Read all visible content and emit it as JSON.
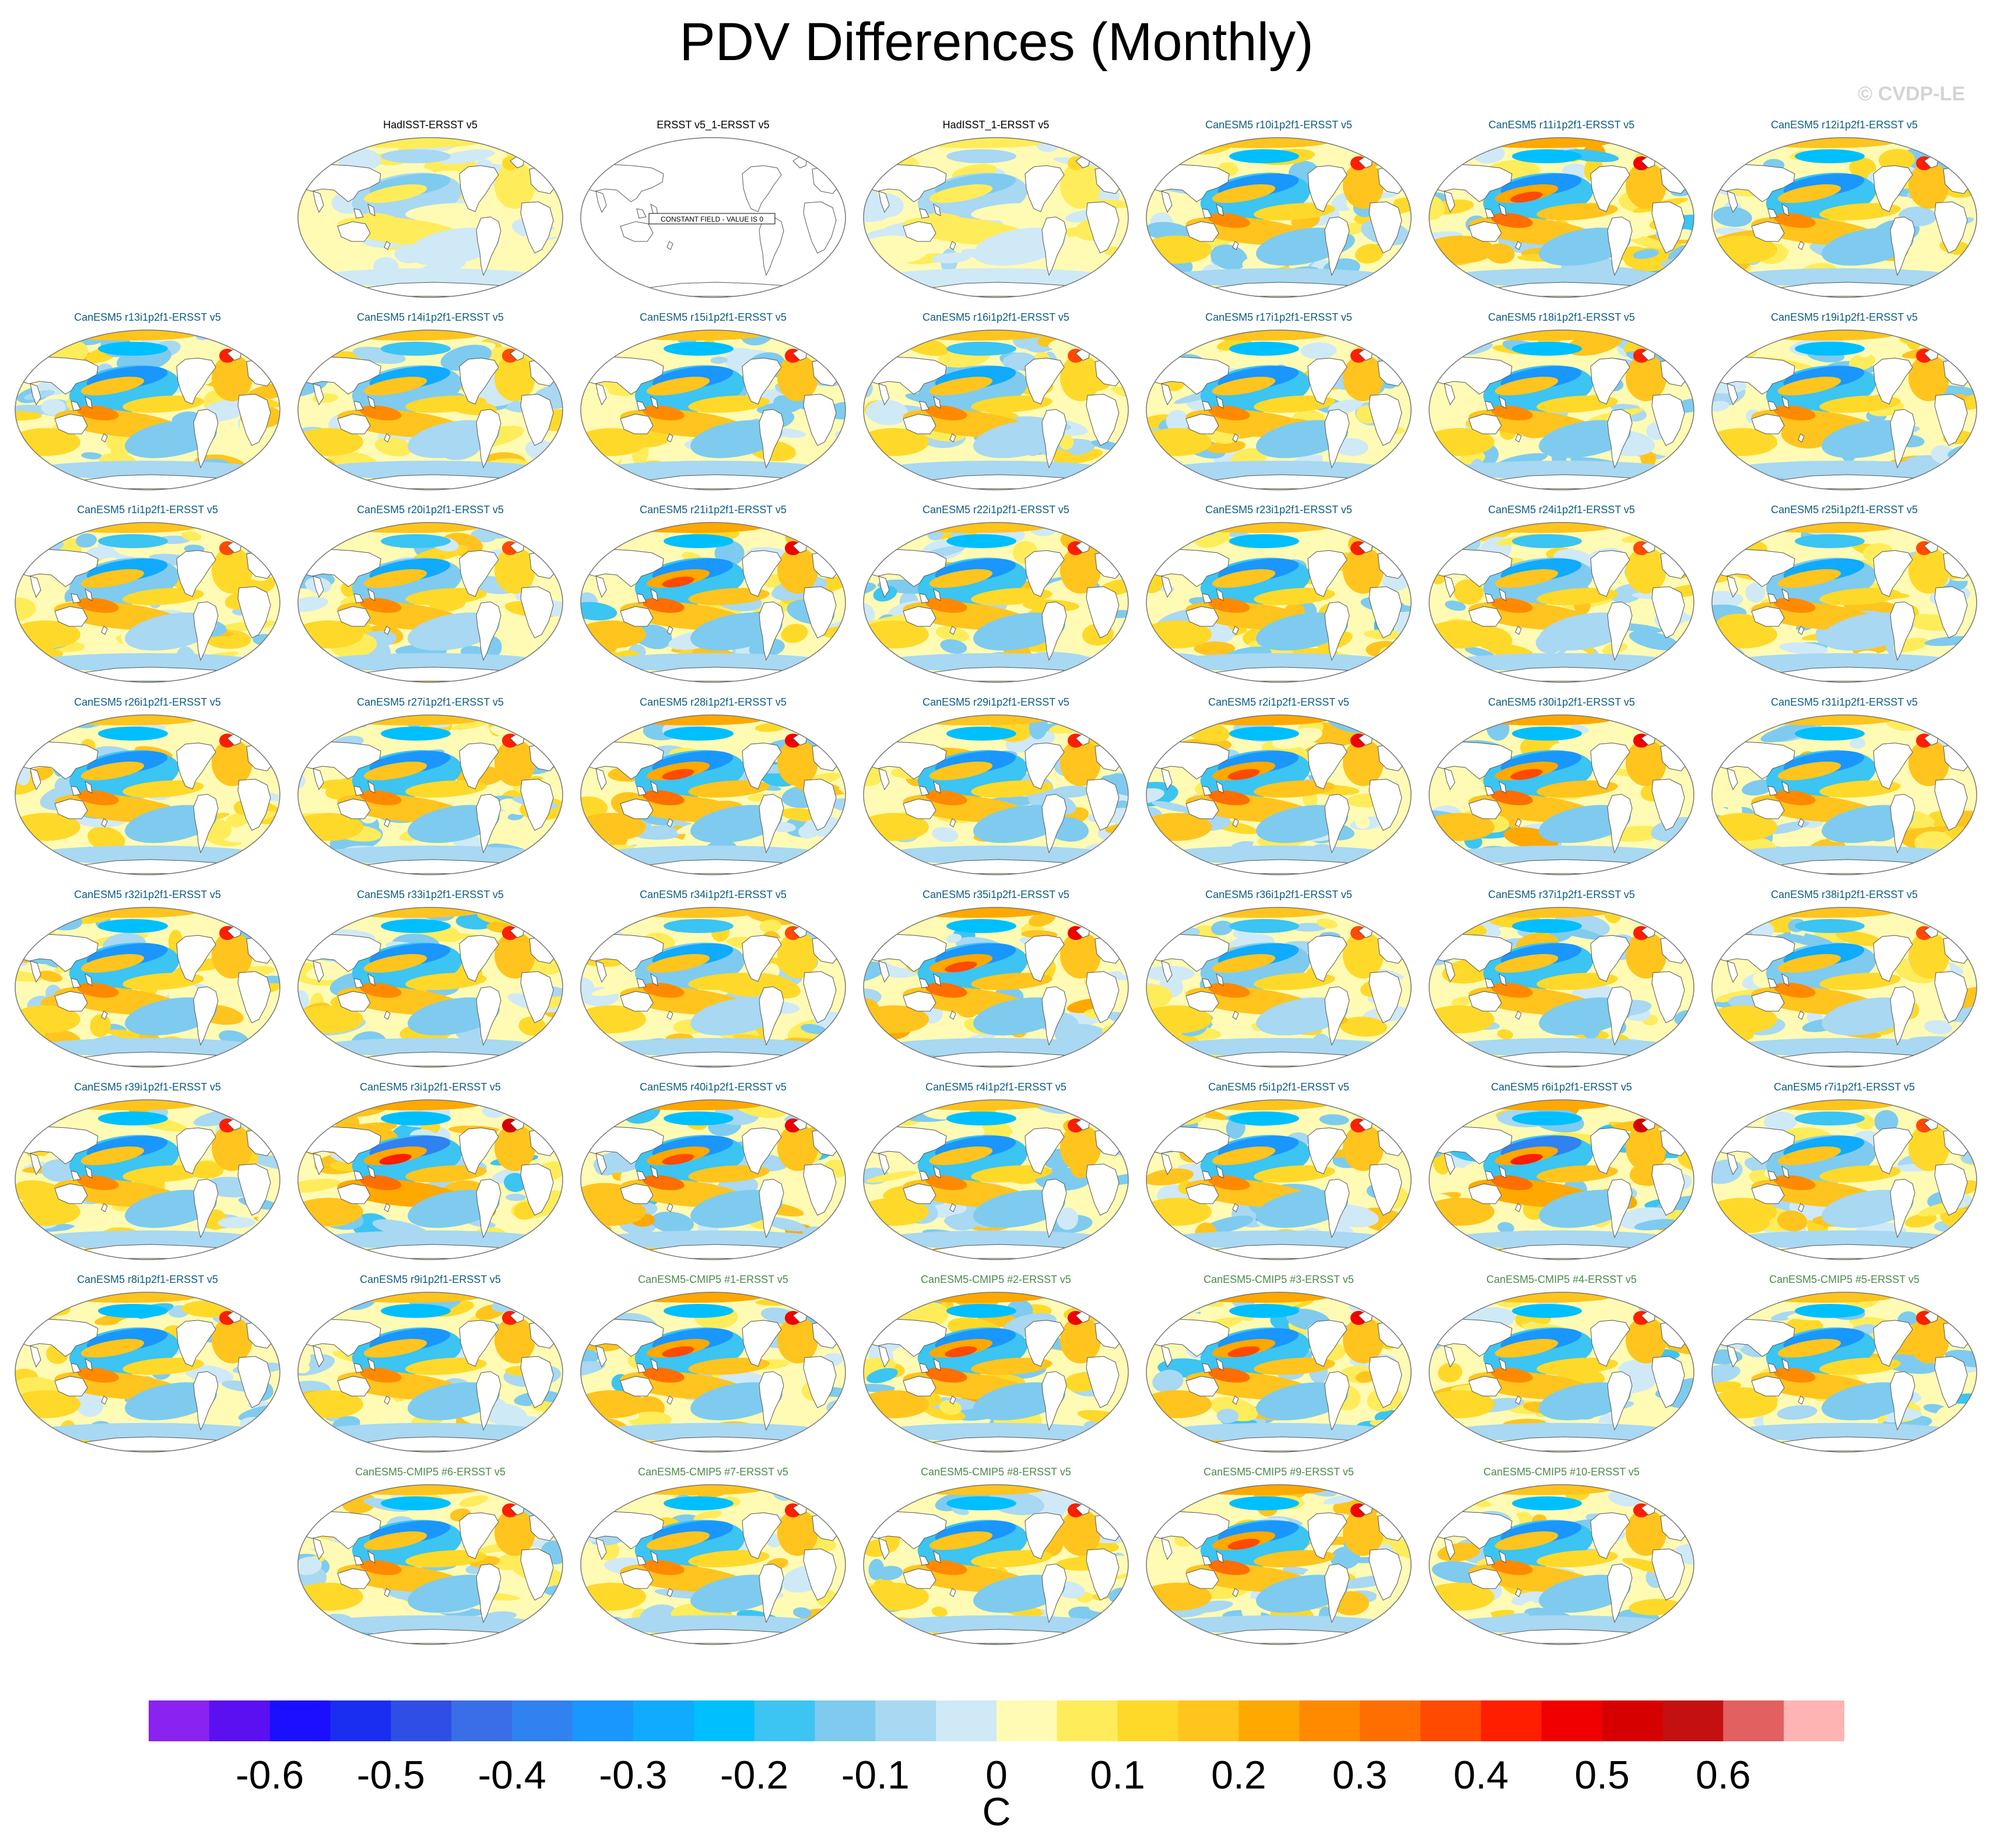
{
  "title": "PDV Differences (Monthly)",
  "watermark": "© CVDP-LE",
  "chart_data": {
    "type": "heatmap",
    "description_type": "small-multiple global SST difference maps",
    "constant_field_note": "CONSTANT FIELD - VALUE IS 0",
    "panels": [
      {
        "label": "HadISST-ERSST v5",
        "group": "obs",
        "intensity": 0.35,
        "seed": 1
      },
      {
        "label": "ERSST v5_1-ERSST v5",
        "group": "obs",
        "intensity": 0,
        "seed": 2,
        "constant": true
      },
      {
        "label": "HadISST_1-ERSST v5",
        "group": "obs",
        "intensity": 0.35,
        "seed": 3
      },
      {
        "label": "CanESM5 r10i1p2f1-ERSST v5",
        "group": "le",
        "intensity": 1.0,
        "seed": 4
      },
      {
        "label": "CanESM5 r11i1p2f1-ERSST v5",
        "group": "le",
        "intensity": 1.1,
        "seed": 5
      },
      {
        "label": "CanESM5 r12i1p2f1-ERSST v5",
        "group": "le",
        "intensity": 1.0,
        "seed": 6
      },
      {
        "label": "CanESM5 r13i1p2f1-ERSST v5",
        "group": "le",
        "intensity": 1.0,
        "seed": 7
      },
      {
        "label": "CanESM5 r14i1p2f1-ERSST v5",
        "group": "le",
        "intensity": 0.9,
        "seed": 8
      },
      {
        "label": "CanESM5 r15i1p2f1-ERSST v5",
        "group": "le",
        "intensity": 1.0,
        "seed": 9
      },
      {
        "label": "CanESM5 r16i1p2f1-ERSST v5",
        "group": "le",
        "intensity": 0.9,
        "seed": 10
      },
      {
        "label": "CanESM5 r17i1p2f1-ERSST v5",
        "group": "le",
        "intensity": 1.0,
        "seed": 11
      },
      {
        "label": "CanESM5 r18i1p2f1-ERSST v5",
        "group": "le",
        "intensity": 1.0,
        "seed": 12
      },
      {
        "label": "CanESM5 r19i1p2f1-ERSST v5",
        "group": "le",
        "intensity": 1.0,
        "seed": 13
      },
      {
        "label": "CanESM5 r1i1p2f1-ERSST v5",
        "group": "le",
        "intensity": 0.9,
        "seed": 14
      },
      {
        "label": "CanESM5 r20i1p2f1-ERSST v5",
        "group": "le",
        "intensity": 0.9,
        "seed": 15
      },
      {
        "label": "CanESM5 r21i1p2f1-ERSST v5",
        "group": "le",
        "intensity": 1.1,
        "seed": 16
      },
      {
        "label": "CanESM5 r22i1p2f1-ERSST v5",
        "group": "le",
        "intensity": 1.0,
        "seed": 17
      },
      {
        "label": "CanESM5 r23i1p2f1-ERSST v5",
        "group": "le",
        "intensity": 1.0,
        "seed": 18
      },
      {
        "label": "CanESM5 r24i1p2f1-ERSST v5",
        "group": "le",
        "intensity": 0.9,
        "seed": 19
      },
      {
        "label": "CanESM5 r25i1p2f1-ERSST v5",
        "group": "le",
        "intensity": 0.9,
        "seed": 20
      },
      {
        "label": "CanESM5 r26i1p2f1-ERSST v5",
        "group": "le",
        "intensity": 1.0,
        "seed": 21
      },
      {
        "label": "CanESM5 r27i1p2f1-ERSST v5",
        "group": "le",
        "intensity": 1.0,
        "seed": 22
      },
      {
        "label": "CanESM5 r28i1p2f1-ERSST v5",
        "group": "le",
        "intensity": 1.1,
        "seed": 23
      },
      {
        "label": "CanESM5 r29i1p2f1-ERSST v5",
        "group": "le",
        "intensity": 1.0,
        "seed": 24
      },
      {
        "label": "CanESM5 r2i1p2f1-ERSST v5",
        "group": "le",
        "intensity": 1.1,
        "seed": 25
      },
      {
        "label": "CanESM5 r30i1p2f1-ERSST v5",
        "group": "le",
        "intensity": 1.1,
        "seed": 26
      },
      {
        "label": "CanESM5 r31i1p2f1-ERSST v5",
        "group": "le",
        "intensity": 1.0,
        "seed": 27
      },
      {
        "label": "CanESM5 r32i1p2f1-ERSST v5",
        "group": "le",
        "intensity": 1.0,
        "seed": 28
      },
      {
        "label": "CanESM5 r33i1p2f1-ERSST v5",
        "group": "le",
        "intensity": 1.0,
        "seed": 29
      },
      {
        "label": "CanESM5 r34i1p2f1-ERSST v5",
        "group": "le",
        "intensity": 0.9,
        "seed": 30
      },
      {
        "label": "CanESM5 r35i1p2f1-ERSST v5",
        "group": "le",
        "intensity": 1.1,
        "seed": 31
      },
      {
        "label": "CanESM5 r36i1p2f1-ERSST v5",
        "group": "le",
        "intensity": 0.9,
        "seed": 32
      },
      {
        "label": "CanESM5 r37i1p2f1-ERSST v5",
        "group": "le",
        "intensity": 1.0,
        "seed": 33
      },
      {
        "label": "CanESM5 r38i1p2f1-ERSST v5",
        "group": "le",
        "intensity": 0.9,
        "seed": 34
      },
      {
        "label": "CanESM5 r39i1p2f1-ERSST v5",
        "group": "le",
        "intensity": 1.0,
        "seed": 35
      },
      {
        "label": "CanESM5 r3i1p2f1-ERSST v5",
        "group": "le",
        "intensity": 1.2,
        "seed": 36
      },
      {
        "label": "CanESM5 r40i1p2f1-ERSST v5",
        "group": "le",
        "intensity": 1.1,
        "seed": 37
      },
      {
        "label": "CanESM5 r4i1p2f1-ERSST v5",
        "group": "le",
        "intensity": 1.0,
        "seed": 38
      },
      {
        "label": "CanESM5 r5i1p2f1-ERSST v5",
        "group": "le",
        "intensity": 1.0,
        "seed": 39
      },
      {
        "label": "CanESM5 r6i1p2f1-ERSST v5",
        "group": "le",
        "intensity": 1.2,
        "seed": 40
      },
      {
        "label": "CanESM5 r7i1p2f1-ERSST v5",
        "group": "le",
        "intensity": 0.9,
        "seed": 41
      },
      {
        "label": "CanESM5 r8i1p2f1-ERSST v5",
        "group": "le",
        "intensity": 1.0,
        "seed": 42
      },
      {
        "label": "CanESM5 r9i1p2f1-ERSST v5",
        "group": "le",
        "intensity": 1.0,
        "seed": 43
      },
      {
        "label": "CanESM5-CMIP5 #1-ERSST v5",
        "group": "cmip5",
        "intensity": 1.1,
        "seed": 44
      },
      {
        "label": "CanESM5-CMIP5 #2-ERSST v5",
        "group": "cmip5",
        "intensity": 1.1,
        "seed": 45
      },
      {
        "label": "CanESM5-CMIP5 #3-ERSST v5",
        "group": "cmip5",
        "intensity": 1.1,
        "seed": 46
      },
      {
        "label": "CanESM5-CMIP5 #4-ERSST v5",
        "group": "cmip5",
        "intensity": 1.0,
        "seed": 47
      },
      {
        "label": "CanESM5-CMIP5 #5-ERSST v5",
        "group": "cmip5",
        "intensity": 1.0,
        "seed": 48
      },
      {
        "label": "CanESM5-CMIP5 #6-ERSST v5",
        "group": "cmip5",
        "intensity": 1.0,
        "seed": 49
      },
      {
        "label": "CanESM5-CMIP5 #7-ERSST v5",
        "group": "cmip5",
        "intensity": 1.0,
        "seed": 50
      },
      {
        "label": "CanESM5-CMIP5 #8-ERSST v5",
        "group": "cmip5",
        "intensity": 1.0,
        "seed": 51
      },
      {
        "label": "CanESM5-CMIP5 #9-ERSST v5",
        "group": "cmip5",
        "intensity": 1.1,
        "seed": 52
      },
      {
        "label": "CanESM5-CMIP5 #10-ERSST v5",
        "group": "cmip5",
        "intensity": 1.0,
        "seed": 53
      }
    ],
    "colorbar": {
      "unit": "C",
      "range": [
        -0.7,
        0.7
      ],
      "step": 0.05,
      "tick_labels": [
        "-0.6",
        "-0.5",
        "-0.4",
        "-0.3",
        "-0.2",
        "-0.1",
        "0",
        "0.1",
        "0.2",
        "0.3",
        "0.4",
        "0.5",
        "0.6"
      ],
      "tick_values": [
        -0.6,
        -0.5,
        -0.4,
        -0.3,
        -0.2,
        -0.1,
        0,
        0.1,
        0.2,
        0.3,
        0.4,
        0.5,
        0.6
      ],
      "colors": [
        "#8a22f0",
        "#5a10f0",
        "#1a10ff",
        "#1a2ef2",
        "#2f4ee6",
        "#3a6ee8",
        "#2f82f0",
        "#1a96ff",
        "#10aaff",
        "#00bfff",
        "#3cc4f2",
        "#7ecbef",
        "#a8d8f2",
        "#cfe9f7",
        "#fffbb4",
        "#ffec5a",
        "#ffd92a",
        "#ffc41e",
        "#ffa800",
        "#ff8a00",
        "#ff6e00",
        "#ff4a00",
        "#ff1e00",
        "#f00000",
        "#d60000",
        "#c41010",
        "#e26060",
        "#ffb4b4"
      ]
    }
  }
}
